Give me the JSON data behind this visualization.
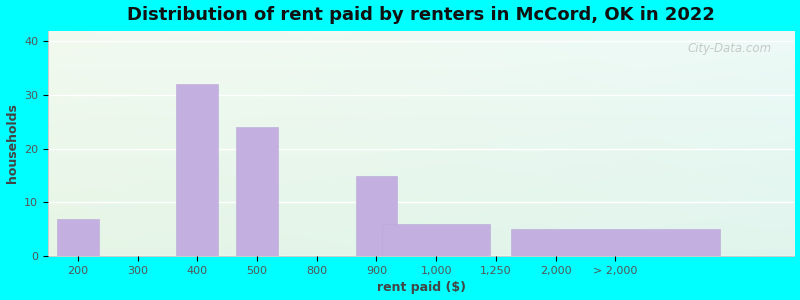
{
  "title": "Distribution of rent paid by renters in McCord, OK in 2022",
  "xlabel": "rent paid ($)",
  "ylabel": "households",
  "bar_color": "#c4b0e0",
  "bar_edgecolor": "#b8a8d8",
  "xtick_labels": [
    "200",
    "300",
    "400",
    "500",
    "800",
    "900",
    "1,000",
    "1,250",
    "2,000",
    "> 2,000"
  ],
  "bar_heights_by_label": {
    "200": 7,
    "400": 32,
    "500": 24,
    "900": 15,
    "1,000": 6,
    "> 2,000": 5
  },
  "bar_widths_by_label": {
    "200": 0.7,
    "400": 0.7,
    "500": 0.7,
    "900": 0.7,
    "1,000": 1.8,
    "> 2,000": 3.5
  },
  "ytick_positions": [
    0,
    10,
    20,
    30,
    40
  ],
  "ylim": [
    0,
    42
  ],
  "background_outer": "#00FFFF",
  "title_fontsize": 13,
  "axis_label_fontsize": 9,
  "tick_fontsize": 8,
  "watermark_text": "City-Data.com"
}
